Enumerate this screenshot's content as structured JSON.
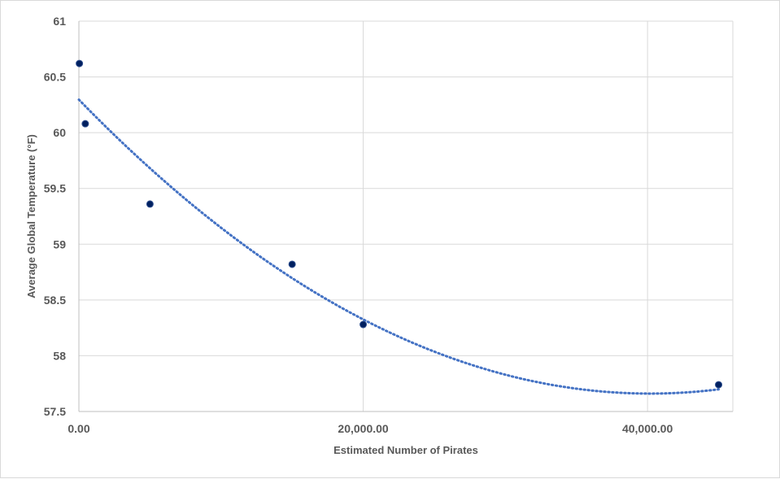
{
  "chart_data": {
    "type": "scatter",
    "xlabel": "Estimated Number of Pirates",
    "ylabel": "Average Global Temperature (°F)",
    "xlim": [
      0,
      46000
    ],
    "ylim": [
      57.5,
      61
    ],
    "x_ticks": [
      0,
      20000,
      40000
    ],
    "x_tick_labels": [
      "0.00",
      "20,000.00",
      "40,000.00"
    ],
    "y_ticks": [
      57.5,
      58,
      58.5,
      59,
      59.5,
      60,
      60.5,
      61
    ],
    "y_tick_labels": [
      "57.5",
      "58",
      "58.5",
      "59",
      "59.5",
      "60",
      "60.5",
      "61"
    ],
    "grid": true,
    "series": [
      {
        "points": [
          {
            "x": 35,
            "y": 60.62
          },
          {
            "x": 450,
            "y": 60.08
          },
          {
            "x": 5000,
            "y": 59.36
          },
          {
            "x": 15000,
            "y": 58.82
          },
          {
            "x": 20000,
            "y": 58.28
          },
          {
            "x": 45000,
            "y": 57.74
          }
        ],
        "color": "#002060"
      }
    ],
    "trendline": {
      "type": "polynomial",
      "order": 2,
      "color": "#4472c4",
      "style": "dotted",
      "coefficients": [
        60.296,
        -0.00013116,
        1.632e-09
      ]
    }
  }
}
